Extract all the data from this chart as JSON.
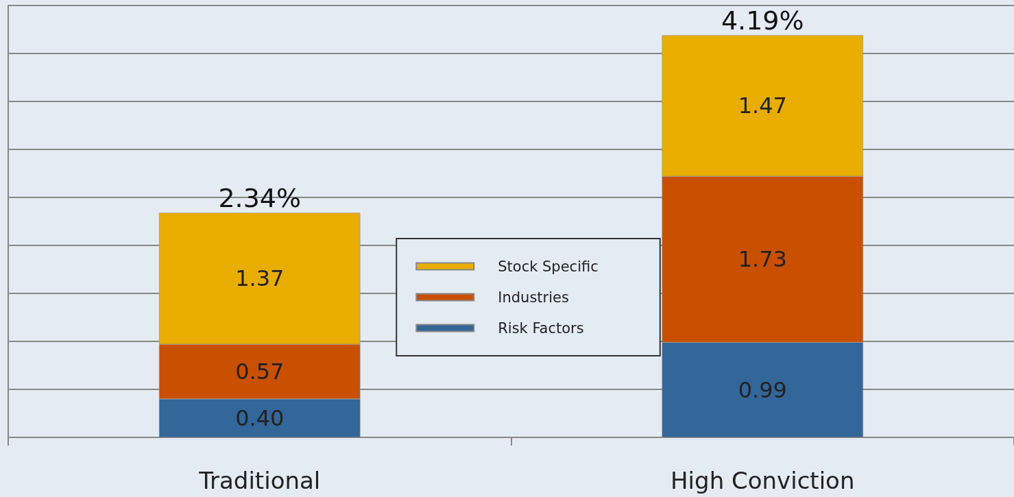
{
  "chart_data": {
    "type": "bar",
    "stacked": true,
    "categories": [
      "Traditional",
      "High Conviction"
    ],
    "series": [
      {
        "name": "Risk Factors",
        "color": "#336699",
        "values": [
          0.4,
          0.99
        ],
        "value_labels": [
          "0.40",
          "0.99"
        ]
      },
      {
        "name": "Industries",
        "color": "#c85000",
        "values": [
          0.57,
          1.73
        ],
        "value_labels": [
          "0.57",
          "1.73"
        ]
      },
      {
        "name": "Stock Specific",
        "color": "#e9ad00",
        "values": [
          1.37,
          1.47
        ],
        "value_labels": [
          "1.37",
          "1.47"
        ]
      }
    ],
    "ylim": [
      0,
      4.5
    ],
    "relative": false,
    "tick_labels": "x",
    "grid": "y",
    "totals": [
      "2.34%",
      "4.19%"
    ],
    "legend": "center"
  }
}
